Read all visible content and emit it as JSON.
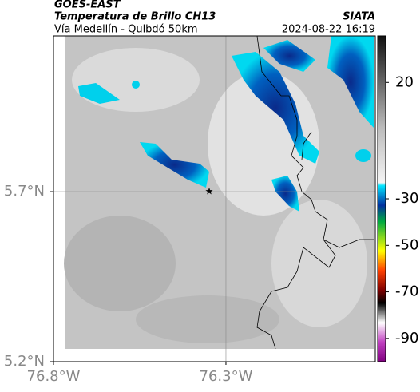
{
  "header": {
    "title": "GOES-EAST",
    "subtitle": "Temperatura de Brillo CH13",
    "route": "Vía Medellín - Quibdó 50km",
    "source": "SIATA",
    "datetime": "2024-08-22 16:19"
  },
  "map": {
    "xlim": [
      -76.8,
      -75.867
    ],
    "ylim": [
      5.2,
      6.158
    ],
    "xticks": [
      {
        "value": -76.8,
        "label": "76.8°W"
      },
      {
        "value": -76.3,
        "label": "76.3°W"
      }
    ],
    "yticks": [
      {
        "value": 5.7,
        "label": "5.7°N"
      },
      {
        "value": 5.2,
        "label": "5.2°N"
      }
    ],
    "grid": true
  },
  "colorbar": {
    "lim": [
      -100,
      40
    ],
    "ticks": [
      20,
      -30,
      -50,
      -70,
      -90
    ]
  }
}
